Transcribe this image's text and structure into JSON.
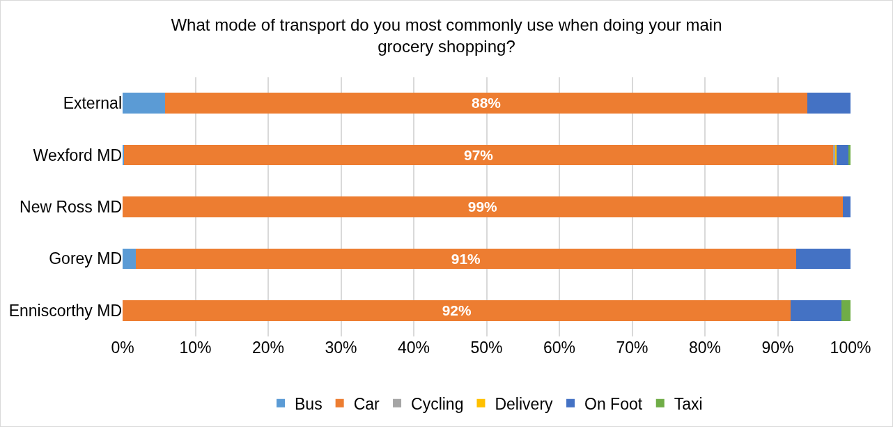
{
  "chart_data": {
    "type": "bar",
    "orientation": "horizontal",
    "stacked": true,
    "title": "What mode of transport do you most commonly use when doing your main\ngrocery shopping?",
    "categories": [
      "External",
      "Wexford MD",
      "New Ross MD",
      "Gorey MD",
      "Enniscorthy MD"
    ],
    "series": [
      {
        "name": "Bus",
        "color": "#5b9bd5",
        "values": [
          5.8,
          0.2,
          null,
          1.8,
          null
        ]
      },
      {
        "name": "Car",
        "color": "#ed7d31",
        "values": [
          88.3,
          97.4,
          98.9,
          90.7,
          91.8
        ],
        "value_labels": [
          "88%",
          "97%",
          "99%",
          "91%",
          "92%"
        ]
      },
      {
        "name": "Cycling",
        "color": "#a5a5a5",
        "values": [
          null,
          0.3,
          null,
          null,
          null
        ]
      },
      {
        "name": "Delivery",
        "color": "#ffc000",
        "values": [
          null,
          0.2,
          null,
          null,
          null
        ]
      },
      {
        "name": "On Foot",
        "color": "#4472c4",
        "values": [
          5.9,
          1.6,
          1.1,
          7.5,
          7.0
        ]
      },
      {
        "name": "Taxi",
        "color": "#70ad47",
        "values": [
          null,
          0.3,
          null,
          null,
          1.2
        ]
      }
    ],
    "xlim": [
      0,
      100
    ],
    "xticks": [
      {
        "value": 0,
        "label": "0%"
      },
      {
        "value": 10,
        "label": "10%"
      },
      {
        "value": 20,
        "label": "20%"
      },
      {
        "value": 30,
        "label": "30%"
      },
      {
        "value": 40,
        "label": "40%"
      },
      {
        "value": 50,
        "label": "50%"
      },
      {
        "value": 60,
        "label": "60%"
      },
      {
        "value": 70,
        "label": "70%"
      },
      {
        "value": 80,
        "label": "80%"
      },
      {
        "value": 90,
        "label": "90%"
      },
      {
        "value": 100,
        "label": "100%"
      }
    ],
    "grid": "x",
    "legend": "bottom"
  }
}
